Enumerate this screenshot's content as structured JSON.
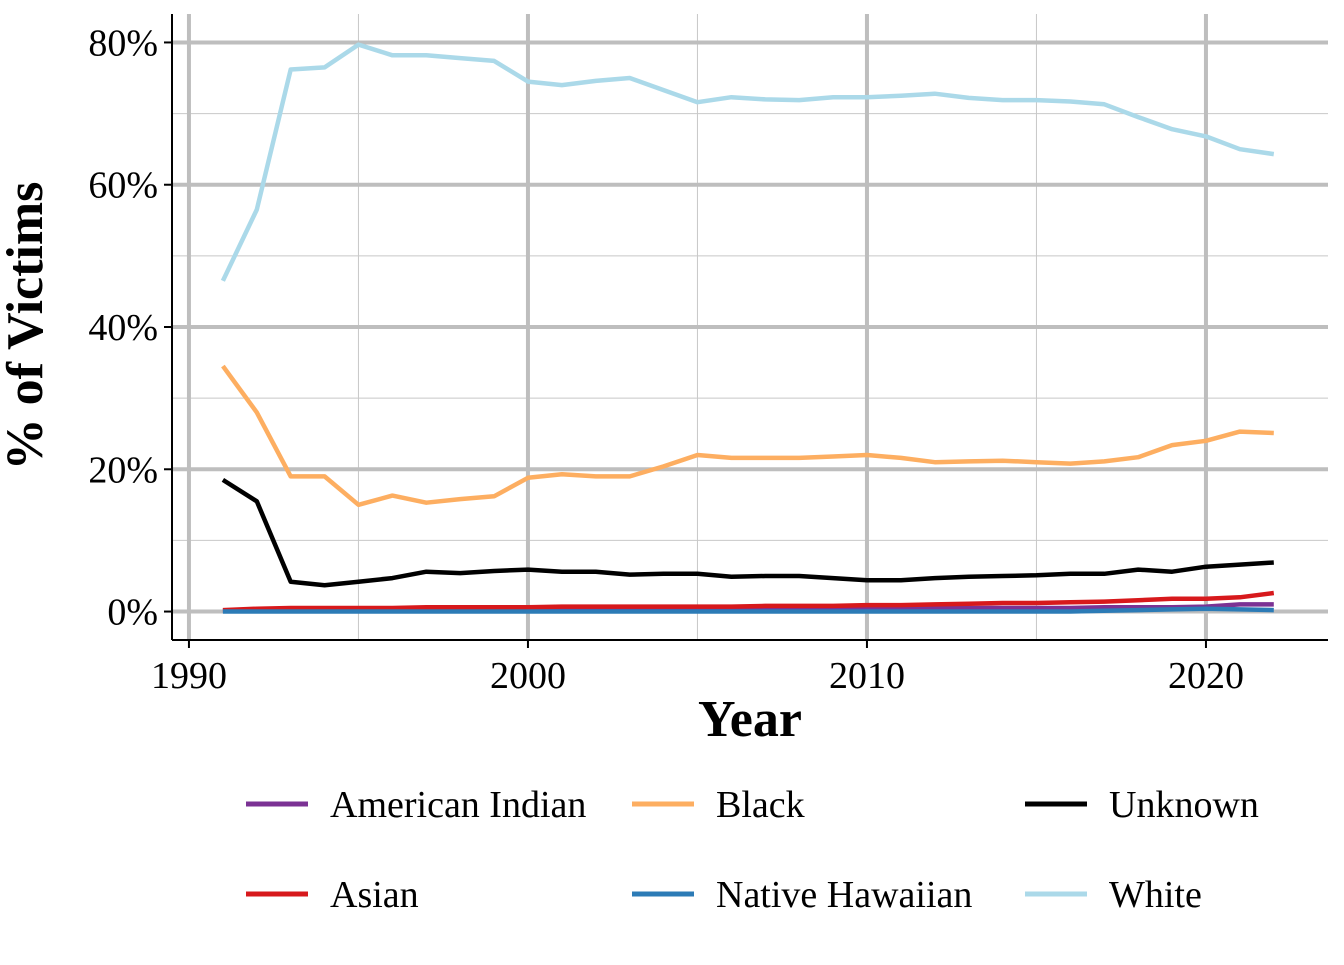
{
  "chart_data": {
    "type": "line",
    "title": "",
    "xlabel": "Year",
    "ylabel": "% of Victims",
    "xlim": [
      1989.5,
      2023.6
    ],
    "ylim": [
      -4,
      84
    ],
    "x_ticks": [
      1990,
      2000,
      2010,
      2020
    ],
    "x_tick_labels": [
      "1990",
      "2000",
      "2010",
      "2020"
    ],
    "y_ticks": [
      0,
      20,
      40,
      60,
      80
    ],
    "y_tick_labels": [
      "0%",
      "20%",
      "40%",
      "60%",
      "80%"
    ],
    "grid": true,
    "legend_position": "bottom",
    "x": [
      1991,
      1992,
      1993,
      1994,
      1995,
      1996,
      1997,
      1998,
      1999,
      2000,
      2001,
      2002,
      2003,
      2004,
      2005,
      2006,
      2007,
      2008,
      2009,
      2010,
      2011,
      2012,
      2013,
      2014,
      2015,
      2016,
      2017,
      2018,
      2019,
      2020,
      2021,
      2022
    ],
    "series": [
      {
        "name": "American Indian",
        "color": "#7B3294",
        "values": [
          0.1,
          0.2,
          0.2,
          0.3,
          0.3,
          0.3,
          0.3,
          0.4,
          0.4,
          0.4,
          0.4,
          0.4,
          0.4,
          0.4,
          0.4,
          0.4,
          0.4,
          0.5,
          0.5,
          0.5,
          0.5,
          0.5,
          0.5,
          0.5,
          0.5,
          0.5,
          0.6,
          0.6,
          0.6,
          0.7,
          1.0,
          1.0
        ]
      },
      {
        "name": "Asian",
        "color": "#D7191C",
        "values": [
          0.2,
          0.4,
          0.5,
          0.5,
          0.5,
          0.5,
          0.6,
          0.6,
          0.6,
          0.6,
          0.7,
          0.7,
          0.7,
          0.7,
          0.7,
          0.7,
          0.8,
          0.8,
          0.8,
          0.9,
          0.9,
          1.0,
          1.1,
          1.2,
          1.2,
          1.3,
          1.4,
          1.6,
          1.8,
          1.8,
          2.0,
          2.6
        ]
      },
      {
        "name": "Black",
        "color": "#FDAE61",
        "values": [
          34.5,
          28.0,
          19.0,
          19.0,
          15.0,
          16.3,
          15.3,
          15.8,
          16.2,
          18.8,
          19.3,
          19.0,
          19.0,
          20.4,
          22.0,
          21.6,
          21.6,
          21.6,
          21.8,
          22.0,
          21.6,
          21.0,
          21.1,
          21.2,
          21.0,
          20.8,
          21.1,
          21.7,
          23.4,
          24.0,
          25.3,
          25.1
        ]
      },
      {
        "name": "Native Hawaiian",
        "color": "#2C7BB6",
        "values": [
          0.0,
          0.0,
          0.0,
          0.0,
          0.0,
          0.0,
          0.0,
          0.0,
          0.0,
          0.0,
          0.0,
          0.0,
          0.0,
          0.0,
          0.0,
          0.0,
          0.0,
          0.0,
          0.0,
          0.0,
          0.0,
          0.0,
          0.0,
          0.0,
          0.0,
          0.0,
          0.1,
          0.2,
          0.3,
          0.4,
          0.3,
          0.2
        ]
      },
      {
        "name": "Unknown",
        "color": "#000000",
        "values": [
          18.5,
          15.5,
          4.2,
          3.7,
          4.2,
          4.7,
          5.6,
          5.4,
          5.7,
          5.9,
          5.6,
          5.6,
          5.2,
          5.3,
          5.3,
          4.9,
          5.0,
          5.0,
          4.7,
          4.4,
          4.4,
          4.7,
          4.9,
          5.0,
          5.1,
          5.3,
          5.3,
          5.9,
          5.6,
          6.3,
          6.6,
          6.9
        ]
      },
      {
        "name": "White",
        "color": "#ABD9E9",
        "values": [
          46.5,
          56.5,
          76.2,
          76.5,
          79.7,
          78.2,
          78.2,
          77.8,
          77.4,
          74.5,
          74.0,
          74.6,
          75.0,
          73.3,
          71.6,
          72.3,
          72.0,
          71.9,
          72.3,
          72.3,
          72.5,
          72.8,
          72.2,
          71.9,
          71.9,
          71.7,
          71.3,
          69.5,
          67.8,
          66.8,
          65.0,
          64.3
        ]
      }
    ],
    "legend_order": [
      "American Indian",
      "Black",
      "Unknown",
      "Asian",
      "Native Hawaiian",
      "White"
    ]
  }
}
